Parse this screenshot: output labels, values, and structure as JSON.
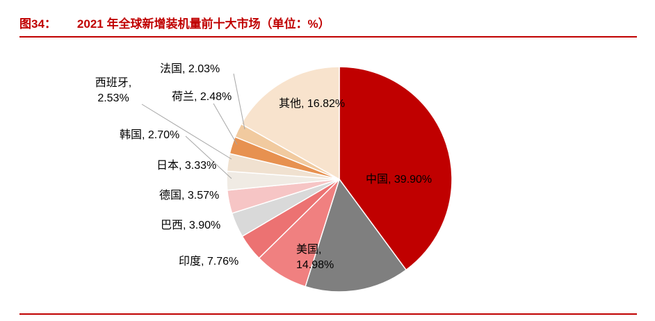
{
  "header": {
    "figure_label": "图34：",
    "title": "2021 年全球新增装机量前十大市场（单位：%）",
    "accent_color": "#C00000"
  },
  "chart_data": {
    "type": "pie",
    "title": "2021 年全球新增装机量前十大市场",
    "unit": "%",
    "direction": "clockwise",
    "start_angle_deg": 0,
    "legend_position": "none",
    "label_style": "category-comma-percent callouts with leader lines",
    "leader_line_color": "#A6A6A6",
    "series": [
      {
        "name": "中国",
        "value": 39.9,
        "label": "中国, 39.90%",
        "color": "#C00000",
        "label_placement": "inside"
      },
      {
        "name": "美国",
        "value": 14.98,
        "label": "美国, 14.98%",
        "color": "#7F7F7F",
        "label_placement": "inside"
      },
      {
        "name": "印度",
        "value": 7.76,
        "label": "印度, 7.76%",
        "color": "#F08080",
        "label_placement": "outside"
      },
      {
        "name": "巴西",
        "value": 3.9,
        "label": "巴西, 3.90%",
        "color": "#EC7272",
        "label_placement": "outside"
      },
      {
        "name": "德国",
        "value": 3.57,
        "label": "德国, 3.57%",
        "color": "#D9D9D9",
        "label_placement": "outside"
      },
      {
        "name": "日本",
        "value": 3.33,
        "label": "日本, 3.33%",
        "color": "#F6C5C5",
        "label_placement": "outside"
      },
      {
        "name": "韩国",
        "value": 2.7,
        "label": "韩国, 2.70%",
        "color": "#F0EBE4",
        "label_placement": "outside"
      },
      {
        "name": "西班牙",
        "value": 2.53,
        "label": "西班牙, 2.53%",
        "color": "#F0E1D0",
        "label_placement": "outside"
      },
      {
        "name": "荷兰",
        "value": 2.48,
        "label": "荷兰, 2.48%",
        "color": "#E79150",
        "label_placement": "outside"
      },
      {
        "name": "法国",
        "value": 2.03,
        "label": "法国, 2.03%",
        "color": "#F1CA9F",
        "label_placement": "outside"
      },
      {
        "name": "其他",
        "value": 16.82,
        "label": "其他, 16.82%",
        "color": "#F8E3CD",
        "label_placement": "inside"
      }
    ]
  }
}
